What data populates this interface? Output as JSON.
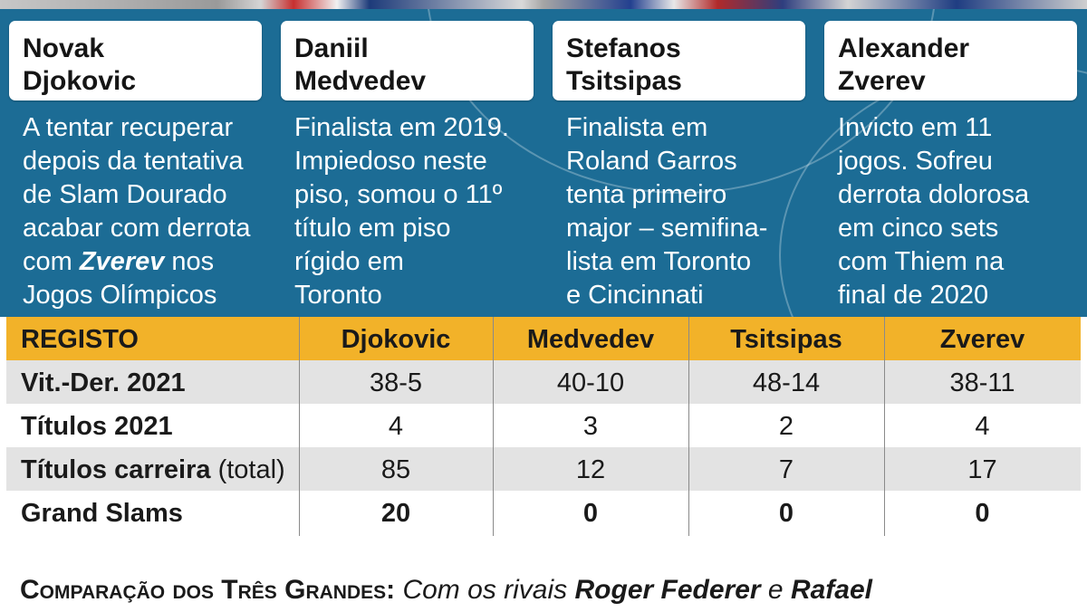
{
  "players": [
    {
      "name": "Novak\nDjokovic",
      "bio_before": "A tentar recuperar\ndepois da tentativa\nde Slam Dourado\nacabar com derrota\ncom ",
      "bio_emph": "Zverev",
      "bio_after": " nos\nJogos Olímpicos"
    },
    {
      "name": "Daniil\nMedvedev",
      "bio_before": "Finalista em 2019.\nImpiedoso neste\npiso, somou o 11º\ntítulo em piso\nrígido em\nToronto",
      "bio_emph": "",
      "bio_after": ""
    },
    {
      "name": "Stefanos\nTsitsipas",
      "bio_before": "Finalista em\nRoland Garros\ntenta primeiro\nmajor – semifina-\nlista em Toronto\ne Cincinnati",
      "bio_emph": "",
      "bio_after": ""
    },
    {
      "name": "Alexander\nZverev",
      "bio_before": "Invicto em 11\njogos. Sofreu\nderrota dolorosa\nem cinco sets\ncom Thiem na\nfinal de 2020",
      "bio_emph": "",
      "bio_after": ""
    }
  ],
  "table": {
    "header": [
      "REGISTO",
      "Djokovic",
      "Medvedev",
      "Tsitsipas",
      "Zverev"
    ],
    "rows": [
      {
        "label": "Vit.-Der. 2021",
        "label_aside": "",
        "values": [
          "38-5",
          "40-10",
          "48-14",
          "38-11"
        ]
      },
      {
        "label": "Títulos 2021",
        "label_aside": "",
        "values": [
          "4",
          "3",
          "2",
          "4"
        ]
      },
      {
        "label": "Títulos carreira",
        "label_aside": " (total)",
        "values": [
          "85",
          "12",
          "7",
          "17"
        ]
      },
      {
        "label": "Grand Slams",
        "label_aside": "",
        "values": [
          "20",
          "0",
          "0",
          "0"
        ]
      }
    ]
  },
  "footer": {
    "lead": "Comparação dos Três Grandes:",
    "text_1": " Com os rivais ",
    "name_1": "Roger Federer",
    "text_2": " e ",
    "name_2": "Rafael"
  },
  "colors": {
    "panel_blue": "#1c6c95",
    "header_gold": "#f2b229",
    "row_grey": "#e3e3e3"
  }
}
